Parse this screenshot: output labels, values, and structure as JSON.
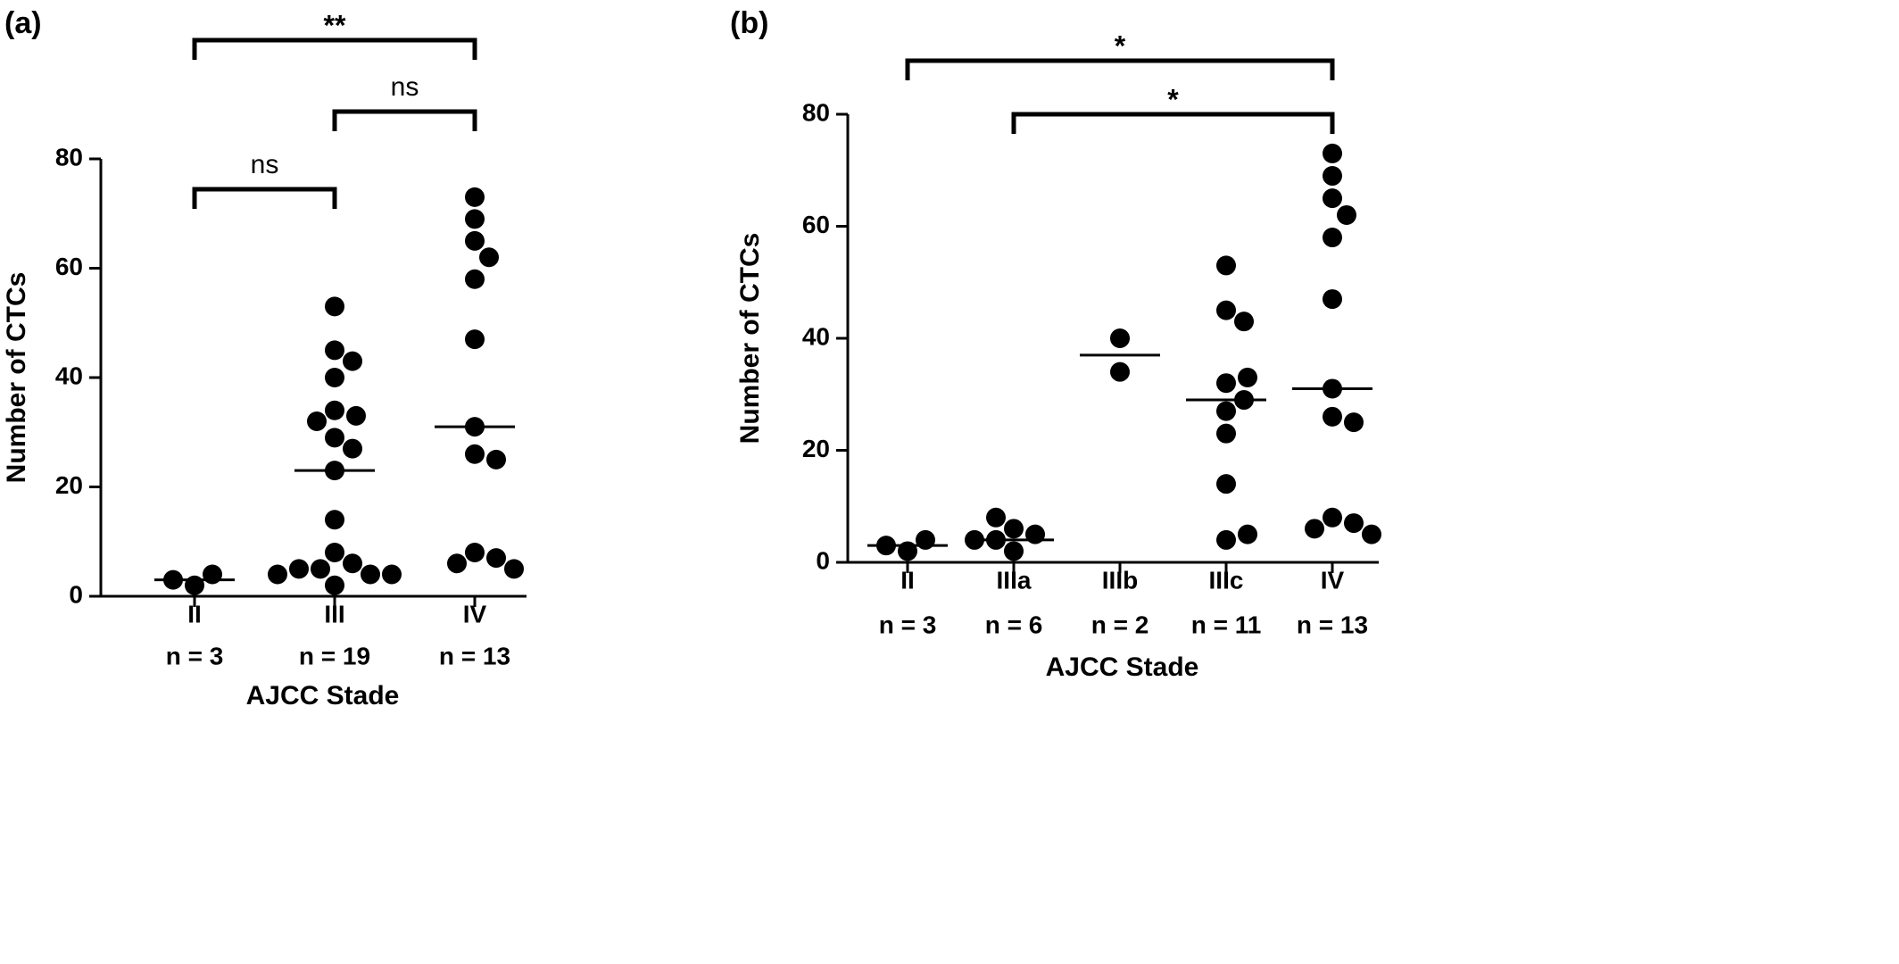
{
  "chart_data": [
    {
      "type": "strip",
      "label": "(a)",
      "ylabel": "Number of CTCs",
      "xlabel": "AJCC Stade",
      "categories": [
        "II",
        "III",
        "IV"
      ],
      "counts": [
        "n = 3",
        "n = 19",
        "n = 13"
      ],
      "values": [
        [
          2,
          4,
          3
        ],
        [
          53,
          45,
          43,
          40,
          34,
          33,
          32,
          29,
          27,
          23,
          14,
          8,
          6,
          5,
          5,
          4,
          4,
          4,
          2
        ],
        [
          73,
          69,
          65,
          62,
          58,
          47,
          31,
          26,
          25,
          8,
          7,
          6,
          5
        ]
      ],
      "medians": [
        3,
        23,
        31
      ],
      "color": "#000000",
      "ylim": [
        0,
        80
      ],
      "yticks": [
        0,
        20,
        40,
        60,
        80
      ],
      "comparisons": [
        {
          "from": "II",
          "to": "IV",
          "label": "**"
        },
        {
          "from": "III",
          "to": "IV",
          "label": "ns"
        },
        {
          "from": "II",
          "to": "III",
          "label": "ns"
        }
      ]
    },
    {
      "type": "strip",
      "label": "(b)",
      "ylabel": "Number of CTCs",
      "xlabel": "AJCC Stade",
      "categories": [
        "II",
        "IIIa",
        "IIIb",
        "IIIc",
        "IV"
      ],
      "counts": [
        "n = 3",
        "n = 6",
        "n = 2",
        "n = 11",
        "n = 13"
      ],
      "values": [
        [
          2,
          4,
          3
        ],
        [
          2,
          6,
          5,
          4,
          4,
          8
        ],
        [
          40,
          34
        ],
        [
          53,
          45,
          43,
          32,
          33,
          27,
          29,
          23,
          14,
          4,
          5
        ],
        [
          73,
          69,
          65,
          62,
          58,
          47,
          31,
          26,
          25,
          8,
          7,
          6,
          5
        ]
      ],
      "medians": [
        3,
        4,
        37,
        29,
        31
      ],
      "color": "#000000",
      "ylim": [
        0,
        80
      ],
      "yticks": [
        0,
        20,
        40,
        60,
        80
      ],
      "comparisons": [
        {
          "from": "II",
          "to": "IV",
          "label": "*"
        },
        {
          "from": "IIIa",
          "to": "IV",
          "label": "*"
        }
      ]
    }
  ]
}
